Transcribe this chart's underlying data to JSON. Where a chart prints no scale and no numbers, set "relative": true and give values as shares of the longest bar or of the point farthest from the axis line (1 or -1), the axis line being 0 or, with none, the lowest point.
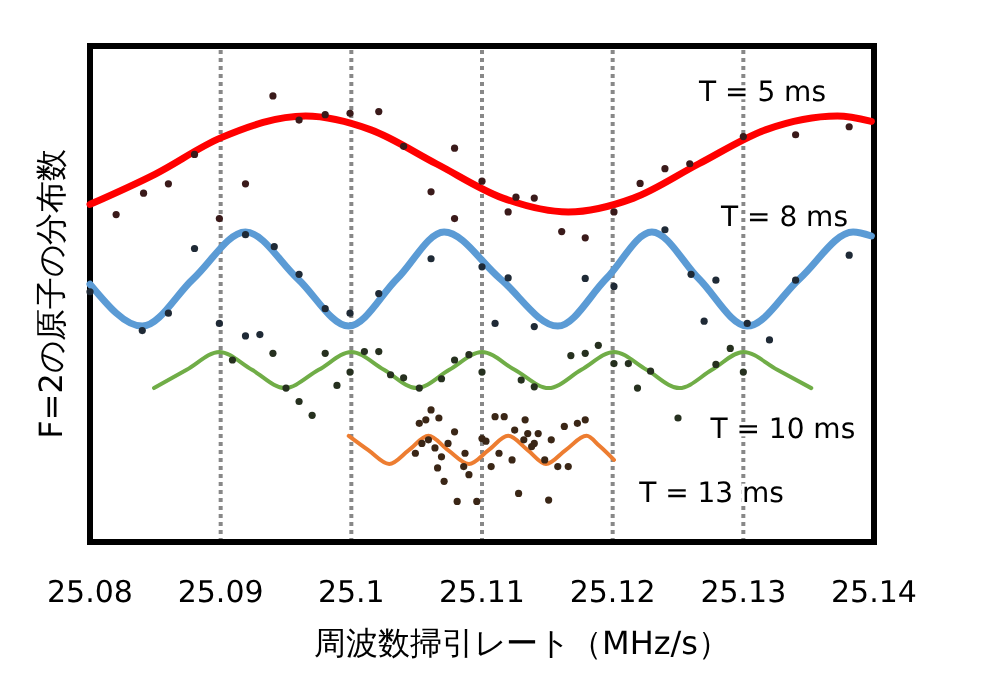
{
  "chart_data": {
    "type": "line",
    "xlabel": "周波数掃引レート（MHz/s）",
    "ylabel": "F=2の原子の分布数",
    "relative": true,
    "grid": "x",
    "xlim": [
      25.08,
      25.14
    ],
    "xticks": [
      25.08,
      25.09,
      25.1,
      25.11,
      25.12,
      25.13,
      25.14
    ],
    "line_style": "solid",
    "series": [
      {
        "name": "T = 5 ms",
        "marker": "none",
        "color": "#ff0000",
        "x": [
          25.08,
          25.085,
          25.09,
          25.0965,
          25.1015,
          25.1065,
          25.1116,
          25.1166,
          25.1216,
          25.1266,
          25.1317,
          25.1372,
          25.1398
        ],
        "values": [
          0.757,
          0.825,
          0.906,
          0.955,
          0.924,
          0.848,
          0.771,
          0.74,
          0.771,
          0.848,
          0.924,
          0.955,
          0.943
        ]
      },
      {
        "name": "T = 8 ms",
        "marker": "none",
        "color": "#5b9bd5",
        "x": [
          25.08,
          25.084,
          25.0879,
          25.0919,
          25.0959,
          25.0998,
          25.1035,
          25.1071,
          25.1114,
          25.1158,
          25.1195,
          25.123,
          25.1266,
          25.1303,
          25.1343,
          25.1384,
          25.1398
        ],
        "values": [
          0.578,
          0.484,
          0.59,
          0.695,
          0.59,
          0.484,
          0.59,
          0.695,
          0.59,
          0.484,
          0.59,
          0.695,
          0.59,
          0.484,
          0.59,
          0.695,
          0.686
        ]
      },
      {
        "name": "T = 10 ms",
        "marker": "none",
        "color": "#70ad47",
        "x": [
          25.0849,
          25.0874,
          25.0899,
          25.0924,
          25.0949,
          25.0975,
          25.1,
          25.1025,
          25.105,
          25.1075,
          25.11,
          25.1125,
          25.1151,
          25.1176,
          25.1201,
          25.1226,
          25.1251,
          25.1276,
          25.13,
          25.1326,
          25.1352
        ],
        "values": [
          0.345,
          0.386,
          0.426,
          0.386,
          0.345,
          0.386,
          0.426,
          0.386,
          0.345,
          0.386,
          0.426,
          0.386,
          0.345,
          0.386,
          0.426,
          0.386,
          0.345,
          0.386,
          0.426,
          0.386,
          0.345
        ]
      },
      {
        "name": "T = 13 ms",
        "marker": "none",
        "color": "#ed7d31",
        "x": [
          25.0998,
          25.1013,
          25.1029,
          25.1044,
          25.1059,
          25.1074,
          25.109,
          25.1105,
          25.112,
          25.1135,
          25.1149,
          25.1164,
          25.118,
          25.119,
          25.1201
        ],
        "values": [
          0.238,
          0.206,
          0.175,
          0.206,
          0.238,
          0.206,
          0.175,
          0.206,
          0.238,
          0.206,
          0.175,
          0.206,
          0.238,
          0.215,
          0.184
        ]
      },
      {
        "type": "scatter",
        "marker": "circle",
        "color": "#3a1a1a",
        "x": [
          25.094,
          25.096,
          25.098,
          25.0999,
          25.1021,
          25.104,
          25.1079,
          25.11,
          25.1061,
          25.1079,
          25.1126,
          25.112,
          25.088,
          25.086,
          25.0841,
          25.082,
          25.0919,
          25.0899,
          25.114,
          25.1161,
          25.1179,
          25.1201,
          25.1221,
          25.124,
          25.1259,
          25.13,
          25.134,
          25.1381
        ],
        "values": [
          1.0,
          0.946,
          0.958,
          0.961,
          0.965,
          0.887,
          0.883,
          0.809,
          0.785,
          0.725,
          0.773,
          0.74,
          0.869,
          0.803,
          0.782,
          0.734,
          0.803,
          0.725,
          0.771,
          0.696,
          0.682,
          0.74,
          0.804,
          0.837,
          0.848,
          0.909,
          0.913,
          0.931
        ]
      },
      {
        "type": "scatter",
        "marker": "circle",
        "color": "#1f2a36",
        "x": [
          25.088,
          25.0919,
          25.0941,
          25.096,
          25.098,
          25.0999,
          25.1021,
          25.1061,
          25.11,
          25.111,
          25.112,
          25.114,
          25.084,
          25.086,
          25.08,
          25.0899,
          25.0919,
          25.093,
          25.1179,
          25.1201,
          25.124,
          25.126,
          25.1279,
          25.127,
          25.1303,
          25.132,
          25.134,
          25.1381
        ],
        "values": [
          0.658,
          0.689,
          0.662,
          0.6,
          0.523,
          0.513,
          0.557,
          0.635,
          0.617,
          0.49,
          0.592,
          0.483,
          0.474,
          0.513,
          0.561,
          0.49,
          0.462,
          0.465,
          0.591,
          0.573,
          0.7,
          0.6,
          0.587,
          0.495,
          0.49,
          0.453,
          0.587,
          0.643
        ]
      },
      {
        "type": "scatter",
        "marker": "circle",
        "color": "#26301f",
        "x": [
          25.094,
          25.0909,
          25.095,
          25.096,
          25.097,
          25.098,
          25.0989,
          25.0999,
          25.101,
          25.1021,
          25.103,
          25.104,
          25.1052,
          25.1069,
          25.109,
          25.1079,
          25.11,
          25.113,
          25.114,
          25.1179,
          25.1189,
          25.1201,
          25.1212,
          25.1219,
          25.1229,
          25.125,
          25.1279,
          25.129,
          25.13,
          25.1168
        ],
        "values": [
          0.423,
          0.408,
          0.345,
          0.315,
          0.284,
          0.423,
          0.351,
          0.381,
          0.427,
          0.427,
          0.375,
          0.368,
          0.345,
          0.366,
          0.42,
          0.408,
          0.381,
          0.363,
          0.348,
          0.423,
          0.441,
          0.4,
          0.4,
          0.345,
          0.383,
          0.278,
          0.398,
          0.434,
          0.381,
          0.418
        ]
      },
      {
        "type": "scatter",
        "marker": "circle",
        "color": "#3a2616",
        "x": [
          25.1052,
          25.1057,
          25.1061,
          25.1067,
          25.1059,
          25.1054,
          25.1064,
          25.1069,
          25.1074,
          25.1079,
          25.1087,
          25.1071,
          25.1081,
          25.1096,
          25.109,
          25.11,
          25.111,
          25.1117,
          25.1103,
          25.1113,
          25.1123,
          25.1125,
          25.1132,
          25.1135,
          25.114,
          25.1128,
          25.1107,
          25.1049,
          25.1066,
          25.1086,
          25.1133,
          25.1143,
          25.1153,
          25.1163,
          25.1173,
          25.1179,
          25.1148,
          25.1158,
          25.1166,
          25.1151,
          25.1138
        ],
        "values": [
          0.266,
          0.274,
          0.296,
          0.278,
          0.229,
          0.221,
          0.211,
          0.191,
          0.221,
          0.247,
          0.199,
          0.136,
          0.091,
          0.091,
          0.151,
          0.232,
          0.281,
          0.281,
          0.226,
          0.199,
          0.184,
          0.251,
          0.229,
          0.243,
          0.221,
          0.109,
          0.169,
          0.199,
          0.166,
          0.169,
          0.274,
          0.243,
          0.229,
          0.259,
          0.266,
          0.274,
          0.184,
          0.169,
          0.169,
          0.094,
          0.214
        ]
      }
    ]
  }
}
